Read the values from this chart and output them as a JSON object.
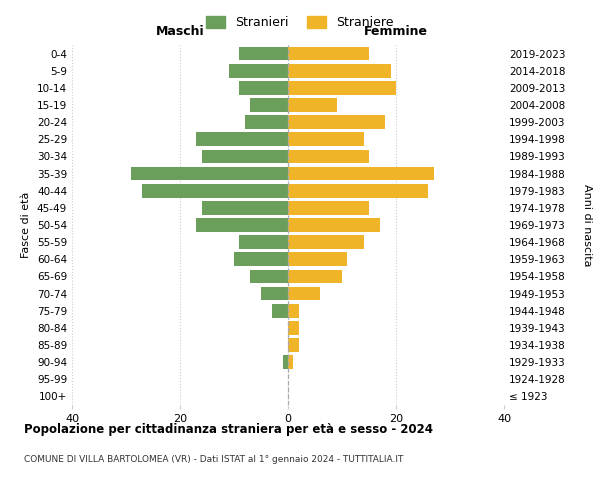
{
  "age_groups": [
    "100+",
    "95-99",
    "90-94",
    "85-89",
    "80-84",
    "75-79",
    "70-74",
    "65-69",
    "60-64",
    "55-59",
    "50-54",
    "45-49",
    "40-44",
    "35-39",
    "30-34",
    "25-29",
    "20-24",
    "15-19",
    "10-14",
    "5-9",
    "0-4"
  ],
  "birth_years": [
    "≤ 1923",
    "1924-1928",
    "1929-1933",
    "1934-1938",
    "1939-1943",
    "1944-1948",
    "1949-1953",
    "1954-1958",
    "1959-1963",
    "1964-1968",
    "1969-1973",
    "1974-1978",
    "1979-1983",
    "1984-1988",
    "1989-1993",
    "1994-1998",
    "1999-2003",
    "2004-2008",
    "2009-2013",
    "2014-2018",
    "2019-2023"
  ],
  "males": [
    0,
    0,
    1,
    0,
    0,
    3,
    5,
    7,
    10,
    9,
    17,
    16,
    27,
    29,
    16,
    17,
    8,
    7,
    9,
    11,
    9
  ],
  "females": [
    0,
    0,
    1,
    2,
    2,
    2,
    6,
    10,
    11,
    14,
    17,
    15,
    26,
    27,
    15,
    14,
    18,
    9,
    20,
    19,
    15
  ],
  "male_color": "#6a9e5a",
  "female_color": "#f0b429",
  "background_color": "#ffffff",
  "grid_color": "#cccccc",
  "title": "Popolazione per cittadinanza straniera per età e sesso - 2024",
  "subtitle": "COMUNE DI VILLA BARTOLOMEA (VR) - Dati ISTAT al 1° gennaio 2024 - TUTTITALIA.IT",
  "xlabel_left": "Maschi",
  "xlabel_right": "Femmine",
  "ylabel_left": "Fasce di età",
  "ylabel_right": "Anni di nascita",
  "legend_male": "Stranieri",
  "legend_female": "Straniere",
  "xlim": 40,
  "bar_height": 0.8
}
